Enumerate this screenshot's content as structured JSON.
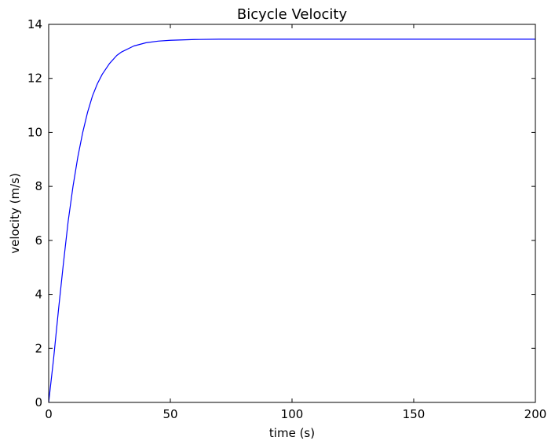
{
  "chart_data": {
    "type": "line",
    "title": "Bicycle Velocity",
    "xlabel": "time (s)",
    "ylabel": "velocity (m/s)",
    "xlim": [
      0,
      200
    ],
    "ylim": [
      0,
      14
    ],
    "xticks": [
      0,
      50,
      100,
      150,
      200
    ],
    "yticks": [
      0,
      2,
      4,
      6,
      8,
      10,
      12,
      14
    ],
    "grid": false,
    "legend": "none",
    "series": [
      {
        "color": "#0000ff",
        "x": [
          0,
          2,
          4,
          6,
          8,
          10,
          12,
          14,
          16,
          18,
          20,
          22,
          25,
          28,
          30,
          35,
          40,
          45,
          50,
          60,
          70,
          80,
          100,
          120,
          150,
          200
        ],
        "y": [
          0.0,
          1.6,
          3.4,
          5.1,
          6.7,
          8.0,
          9.1,
          10.0,
          10.75,
          11.35,
          11.8,
          12.15,
          12.55,
          12.85,
          12.98,
          13.2,
          13.32,
          13.38,
          13.41,
          13.44,
          13.45,
          13.45,
          13.45,
          13.45,
          13.45,
          13.45
        ]
      }
    ]
  }
}
